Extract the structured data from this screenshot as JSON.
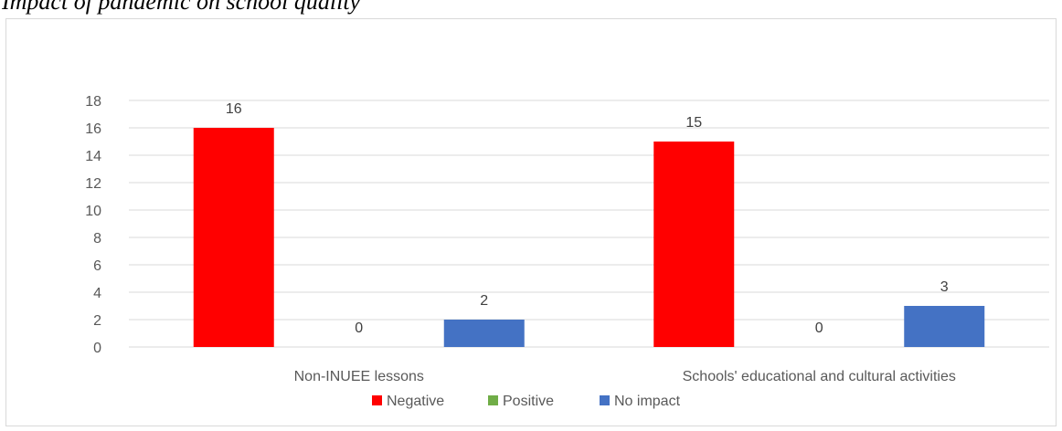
{
  "caption": "Impact of pandemic on school quality",
  "chart_data": {
    "type": "bar",
    "categories": [
      "Non-INUEE lessons",
      "Schools' educational and cultural activities"
    ],
    "series": [
      {
        "name": "Negative",
        "values": [
          16,
          15
        ],
        "color": "#ff0000"
      },
      {
        "name": "Positive",
        "values": [
          0,
          0
        ],
        "color": "#70ad47"
      },
      {
        "name": "No impact",
        "values": [
          2,
          3
        ],
        "color": "#4472c4"
      }
    ],
    "ylim": [
      0,
      18
    ],
    "yticks": [
      0,
      2,
      4,
      6,
      8,
      10,
      12,
      14,
      16,
      18
    ],
    "title": "",
    "xlabel": "",
    "ylabel": "",
    "grid": true,
    "legend_position": "bottom",
    "data_labels": true
  }
}
